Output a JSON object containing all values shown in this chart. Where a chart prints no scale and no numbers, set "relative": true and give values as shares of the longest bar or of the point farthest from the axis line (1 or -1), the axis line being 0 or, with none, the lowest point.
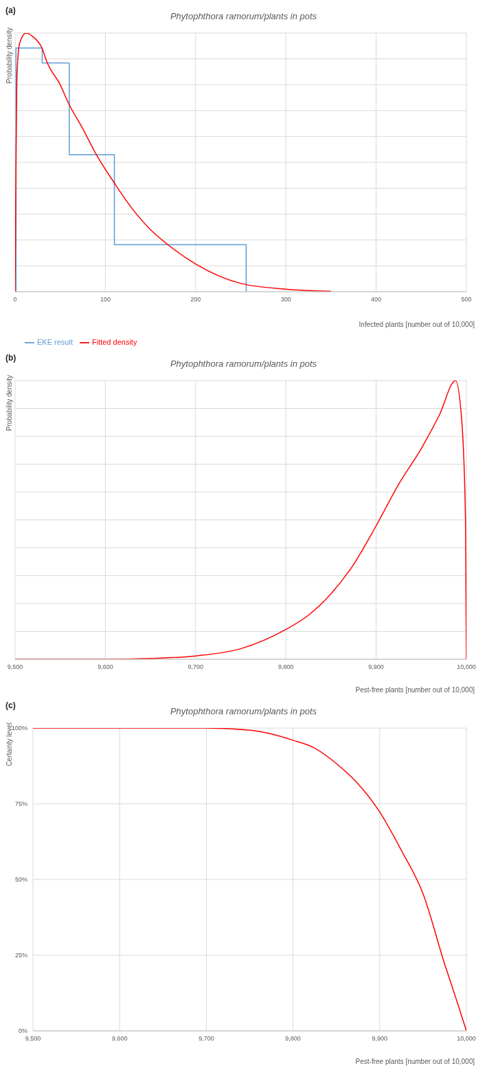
{
  "chart_data": [
    {
      "type": "line",
      "annotations": [
        "(a)"
      ],
      "title": "Phytophthora ramorum/plants in pots",
      "ylabel": "Probability density",
      "xlabel": "Infected plants [number out of 10,000]",
      "relative": true,
      "xlim": [
        0,
        500
      ],
      "xticks": [
        0,
        100,
        200,
        300,
        400,
        500
      ],
      "grid": true,
      "legend": "bottom left",
      "series": [
        {
          "name": "EKE result",
          "type": "step",
          "color": "#5b9bd5",
          "x": [
            1,
            1,
            30,
            60,
            110,
            256
          ],
          "values": [
            0,
            0.942,
            0.884,
            0.53,
            0.182,
            0
          ]
        },
        {
          "name": "Fitted density",
          "type": "line",
          "color": "#ff0000",
          "x": [
            0,
            1,
            2,
            5,
            12,
            20,
            30,
            35,
            50,
            59,
            75,
            90,
            110,
            130,
            150,
            170,
            200,
            250,
            300,
            350
          ],
          "values": [
            0,
            0.5,
            0.83,
            0.96,
            1,
            0.985,
            0.94,
            0.89,
            0.8,
            0.73,
            0.63,
            0.53,
            0.42,
            0.32,
            0.24,
            0.18,
            0.107,
            0.032,
            0.01,
            0.002
          ]
        }
      ]
    },
    {
      "type": "line",
      "annotations": [
        "(b)"
      ],
      "title": "Phytophthora ramorum/plants in pots",
      "ylabel": "Probability density",
      "xlabel": "Pest-free plants [number out of 10,000]",
      "relative": true,
      "xlim": [
        9500,
        10000
      ],
      "xticks": [
        {
          "value": 9500,
          "label": "9,500"
        },
        {
          "value": 9600,
          "label": "9,600"
        },
        {
          "value": 9700,
          "label": "9,700"
        },
        {
          "value": 9800,
          "label": "9,800"
        },
        {
          "value": 9900,
          "label": "9,900"
        },
        {
          "value": 10000,
          "label": "10,000"
        }
      ],
      "grid": true,
      "series": [
        {
          "color": "#ff0000",
          "x": [
            9500,
            9600,
            9650,
            9700,
            9750,
            9800,
            9825,
            9850,
            9875,
            9900,
            9925,
            9950,
            9970,
            9988,
            9995,
            9999,
            10000
          ],
          "values": [
            0,
            0,
            0.003,
            0.012,
            0.038,
            0.107,
            0.158,
            0.235,
            0.34,
            0.479,
            0.628,
            0.756,
            0.876,
            1,
            0.85,
            0.5,
            0
          ]
        }
      ]
    },
    {
      "type": "line",
      "annotations": [
        "(c)"
      ],
      "title": "Phytophthora ramorum/plants in pots",
      "ylabel": "Certainty level",
      "xlabel": "Pest-free plants [number out of 10,000]",
      "xlim": [
        9500,
        10000
      ],
      "xticks": [
        {
          "value": 9500,
          "label": "9,500"
        },
        {
          "value": 9600,
          "label": "9,600"
        },
        {
          "value": 9700,
          "label": "9,700"
        },
        {
          "value": 9800,
          "label": "9,800"
        },
        {
          "value": 9900,
          "label": "9,900"
        },
        {
          "value": 10000,
          "label": "10,000"
        }
      ],
      "ylim": [
        0,
        100
      ],
      "yticks": [
        {
          "value": 0,
          "label": "0%"
        },
        {
          "value": 25,
          "label": "25%"
        },
        {
          "value": 50,
          "label": "50%"
        },
        {
          "value": 75,
          "label": "75%"
        },
        {
          "value": 100,
          "label": "100%"
        }
      ],
      "grid": true,
      "series": [
        {
          "color": "#ff0000",
          "x": [
            9500,
            9600,
            9700,
            9750,
            9800,
            9825,
            9850,
            9875,
            9900,
            9925,
            9950,
            9975,
            9990,
            10000
          ],
          "values": [
            100,
            100,
            100,
            99.3,
            96,
            93.4,
            88.3,
            81.6,
            72.3,
            59.6,
            45.3,
            22,
            9,
            0
          ]
        }
      ]
    }
  ]
}
